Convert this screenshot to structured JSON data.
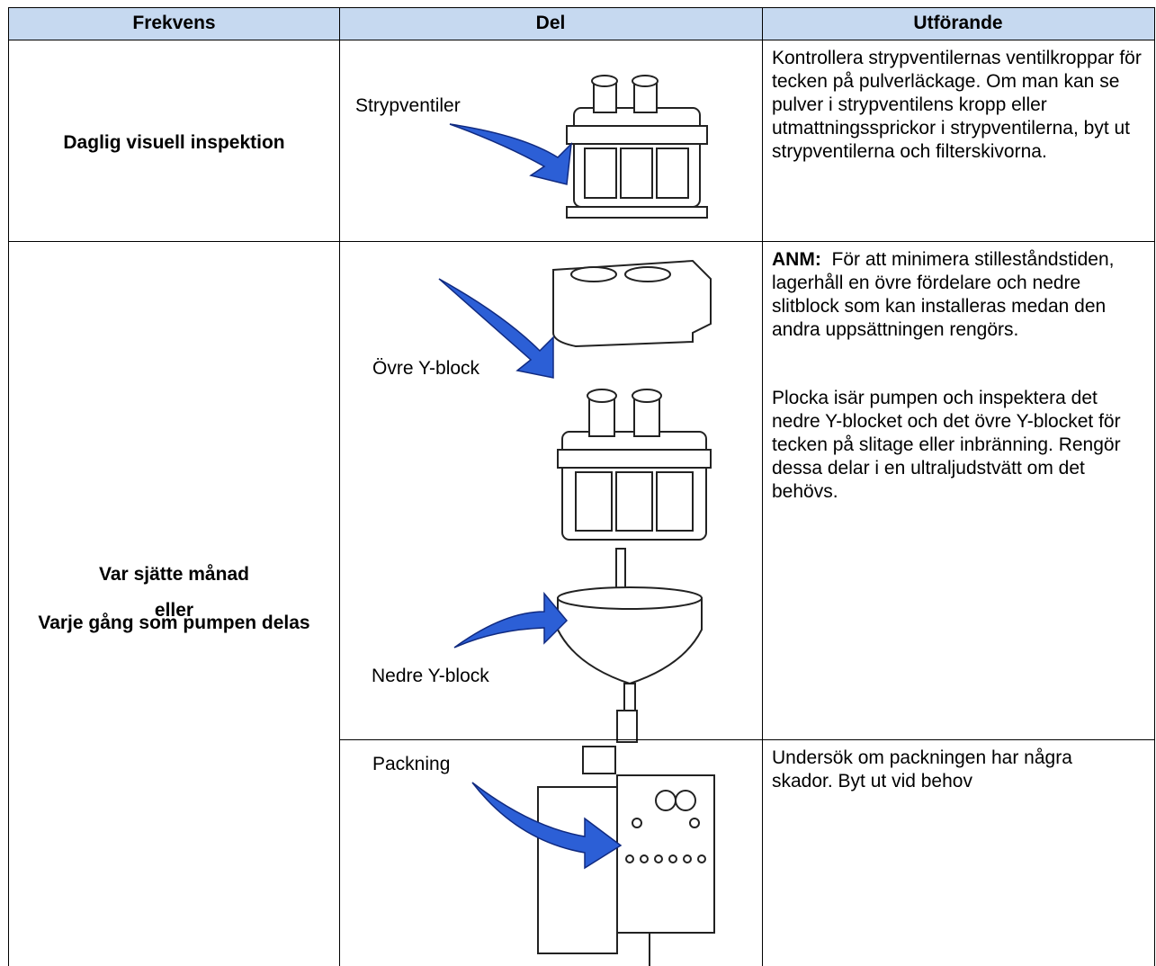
{
  "table": {
    "headers": [
      "Frekvens",
      "Del",
      "Utförande"
    ],
    "rows": [
      {
        "frequency": [
          "Daglig visuell inspektion"
        ],
        "parts": [
          "Strypventiler"
        ],
        "action": [
          {
            "text": "Kontrollera strypventilernas ventilkroppar för tecken på pulverläckage.  Om man kan se pulver i strypventilens kropp eller utmattningssprickor i strypventilerna, byt ut strypventilerna och filterskivorna."
          }
        ]
      },
      {
        "frequency": [
          "Var sjätte månad",
          "eller",
          "Varje gång som pumpen delas"
        ],
        "parts": [
          "Övre Y-block",
          "Nedre Y-block"
        ],
        "action": [
          {
            "label": "ANM:",
            "text": "För att minimera stilleståndstiden, lagerhåll en övre fördelare och nedre slitblock som kan installeras medan den andra uppsättningen rengörs."
          },
          {
            "text": "Plocka isär pumpen och inspektera det nedre Y-blocket och det övre Y-blocket för tecken på slitage eller inbränning.  Rengör dessa delar i en ultraljudstvätt om det behövs."
          }
        ]
      },
      {
        "parts": [
          "Packning"
        ],
        "action": [
          {
            "text": "Undersök om packningen har några skador.  Byt ut vid behov"
          }
        ]
      }
    ]
  }
}
